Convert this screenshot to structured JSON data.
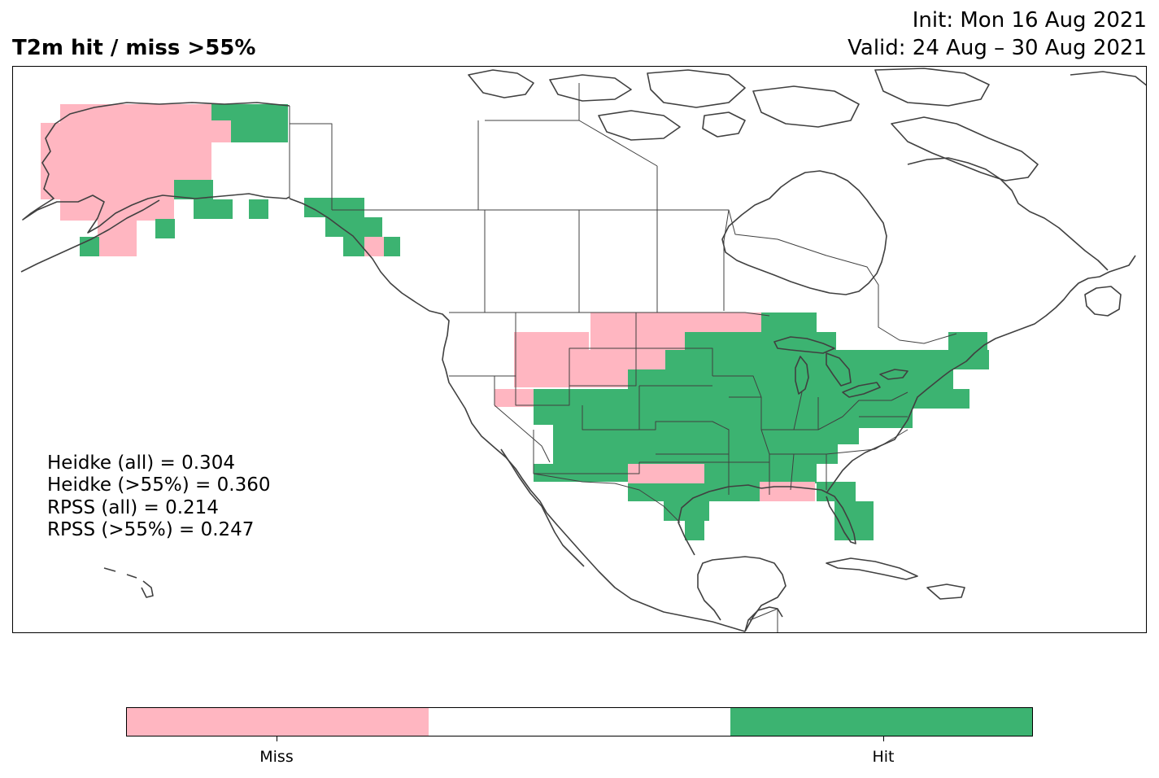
{
  "title": "T2m hit / miss  >55%",
  "init": "Init: Mon 16 Aug 2021",
  "valid": "Valid: 24 Aug – 30 Aug 2021",
  "stats": [
    "Heidke (all) = 0.304",
    "Heidke (>55%) = 0.360",
    "RPSS (all) = 0.214",
    "RPSS (>55%) = 0.247"
  ],
  "colors": {
    "miss": "#ffb6c1",
    "none": "#ffffff",
    "hit": "#3cb371",
    "coast": "#404040",
    "border": "#404040"
  },
  "legend": {
    "miss_label": "Miss",
    "hit_label": "Hit"
  }
}
